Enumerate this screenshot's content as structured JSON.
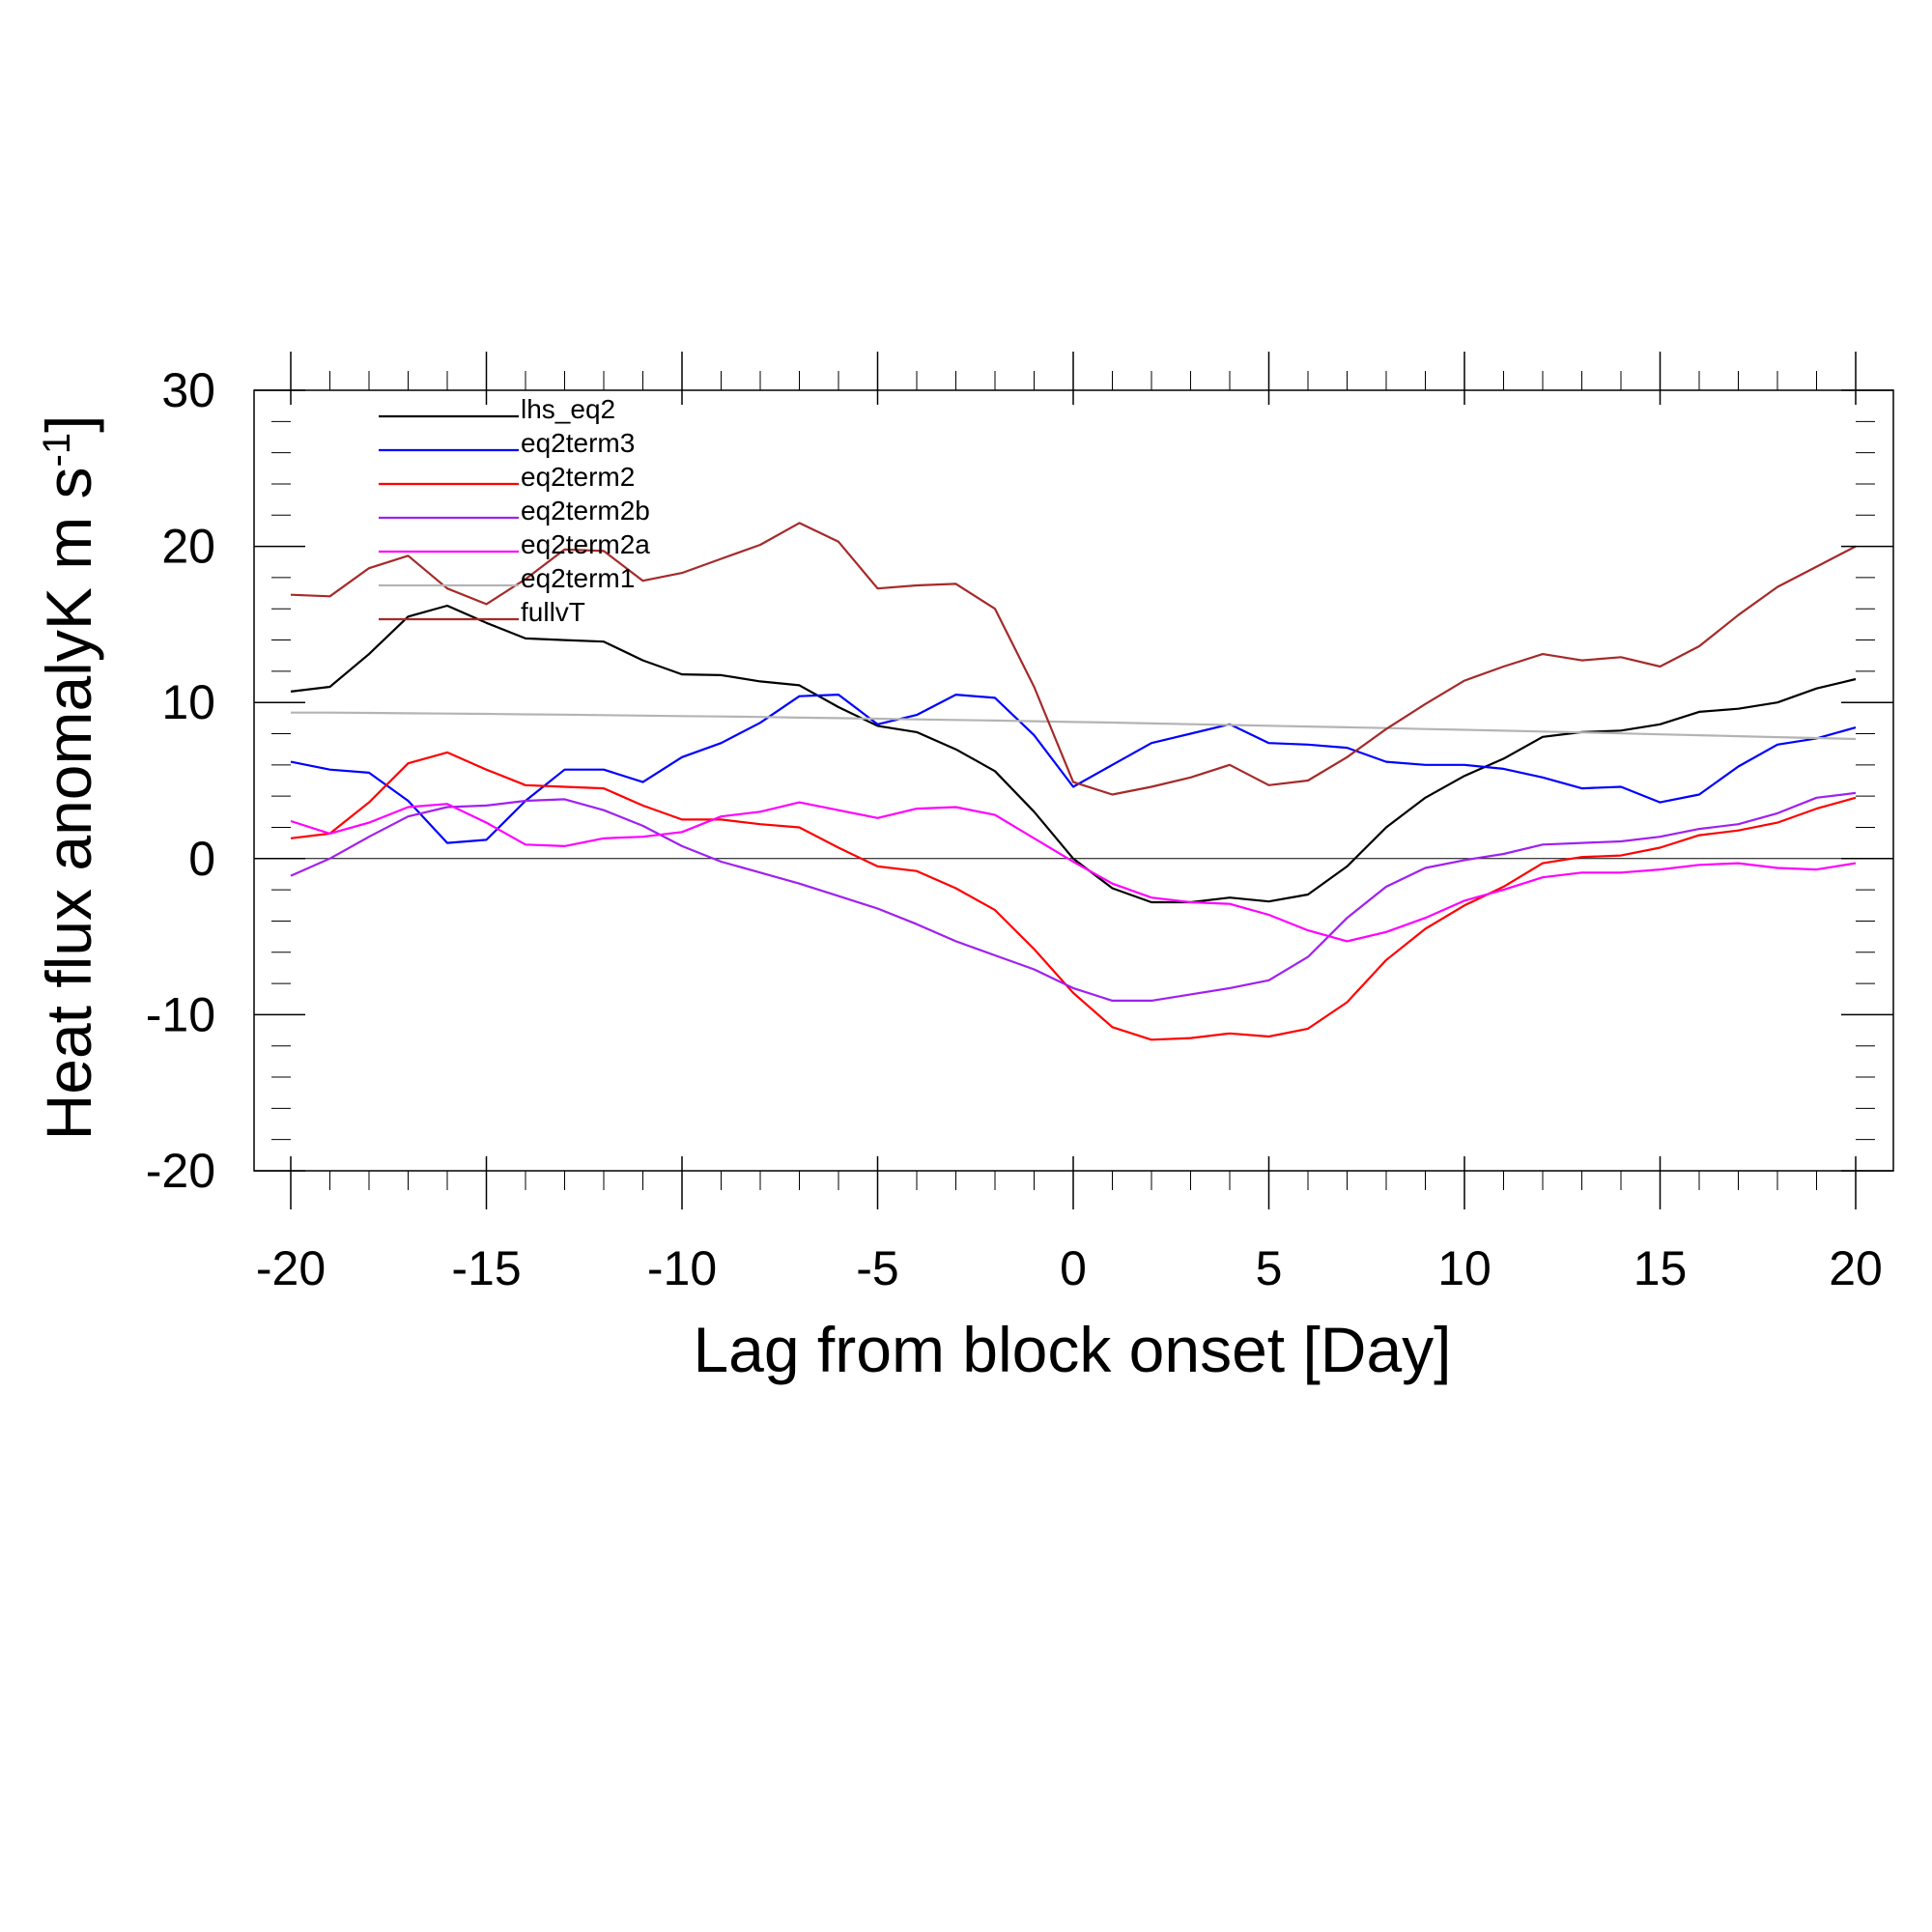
{
  "chart_data": {
    "type": "line",
    "title": "",
    "xlabel": "Lag from block onset [Day]",
    "ylabel_main": "Heat flux anomalyK m s",
    "ylabel_sup": "-1",
    "ylabel_close": "]",
    "xlim": [
      -20,
      20
    ],
    "ylim": [
      -20,
      30
    ],
    "x_ticks": [
      -20,
      -15,
      -10,
      -5,
      0,
      5,
      10,
      15,
      20
    ],
    "x_tick_labels": [
      "-20",
      "-15",
      "-10",
      "-5",
      "0",
      "5",
      "10",
      "15",
      "20"
    ],
    "y_ticks": [
      -20,
      -10,
      0,
      10,
      20,
      30
    ],
    "y_tick_labels": [
      "-20",
      "-10",
      "0",
      "10",
      "20",
      "30"
    ],
    "zero_line": true,
    "legend_position": "top-left",
    "x": [
      -20,
      -19,
      -18,
      -17,
      -16,
      -15,
      -14,
      -13,
      -12,
      -11,
      -10,
      -9,
      -8,
      -7,
      -6,
      -5,
      -4,
      -3,
      -2,
      -1,
      0,
      1,
      2,
      3,
      4,
      5,
      6,
      7,
      8,
      9,
      10,
      11,
      12,
      13,
      14,
      15,
      16,
      17,
      18,
      19,
      20
    ],
    "series": [
      {
        "name": "lhs_eq2",
        "color": "#000000",
        "values": [
          10.7,
          11.0,
          13.1,
          15.5,
          16.2,
          15.1,
          14.1,
          14.0,
          13.9,
          12.7,
          11.8,
          11.75,
          11.35,
          11.1,
          9.7,
          8.5,
          8.1,
          7.0,
          5.6,
          3.0,
          0.0,
          -1.9,
          -2.8,
          -2.8,
          -2.5,
          -2.75,
          -2.3,
          -0.5,
          2.0,
          3.9,
          5.3,
          6.4,
          7.8,
          8.1,
          8.2,
          8.6,
          9.4,
          9.6,
          10.0,
          10.9,
          11.5
        ]
      },
      {
        "name": "eq2term3",
        "color": "#0000ff",
        "values": [
          6.2,
          5.7,
          5.5,
          3.7,
          1.0,
          1.2,
          3.7,
          5.7,
          5.7,
          4.9,
          6.5,
          7.4,
          8.7,
          10.4,
          10.5,
          8.6,
          9.2,
          10.5,
          10.3,
          7.9,
          4.6,
          6.0,
          7.4,
          8.0,
          8.6,
          7.4,
          7.3,
          7.1,
          6.2,
          6.0,
          6.0,
          5.75,
          5.2,
          4.5,
          4.6,
          3.6,
          4.1,
          5.9,
          7.3,
          7.7,
          8.4
        ]
      },
      {
        "name": "eq2term2",
        "color": "#ff0000",
        "values": [
          1.3,
          1.6,
          3.6,
          6.1,
          6.8,
          5.7,
          4.7,
          4.6,
          4.5,
          3.4,
          2.5,
          2.5,
          2.2,
          2.0,
          0.7,
          -0.5,
          -0.8,
          -1.9,
          -3.3,
          -5.8,
          -8.6,
          -10.8,
          -11.6,
          -11.5,
          -11.2,
          -11.4,
          -10.9,
          -9.2,
          -6.5,
          -4.5,
          -3.0,
          -1.8,
          -0.3,
          0.1,
          0.2,
          0.7,
          1.5,
          1.8,
          2.3,
          3.2,
          3.9
        ]
      },
      {
        "name": "eq2term2b",
        "color": "#a020f0",
        "values": [
          -1.1,
          0.0,
          1.4,
          2.7,
          3.3,
          3.4,
          3.7,
          3.8,
          3.1,
          2.1,
          0.8,
          -0.2,
          -0.9,
          -1.6,
          -2.4,
          -3.2,
          -4.2,
          -5.3,
          -6.2,
          -7.1,
          -8.3,
          -9.1,
          -9.1,
          -8.7,
          -8.3,
          -7.8,
          -6.3,
          -3.8,
          -1.8,
          -0.6,
          -0.1,
          0.3,
          0.9,
          1.0,
          1.1,
          1.4,
          1.9,
          2.2,
          2.9,
          3.9,
          4.2
        ]
      },
      {
        "name": "eq2term2a",
        "color": "#ff00ff",
        "values": [
          2.4,
          1.6,
          2.3,
          3.3,
          3.5,
          2.3,
          0.9,
          0.8,
          1.3,
          1.4,
          1.7,
          2.7,
          3.0,
          3.6,
          3.1,
          2.6,
          3.2,
          3.3,
          2.8,
          1.3,
          -0.2,
          -1.6,
          -2.5,
          -2.8,
          -2.9,
          -3.6,
          -4.6,
          -5.3,
          -4.7,
          -3.8,
          -2.7,
          -2.0,
          -1.2,
          -0.9,
          -0.9,
          -0.7,
          -0.4,
          -0.3,
          -0.6,
          -0.7,
          -0.3
        ]
      },
      {
        "name": "eq2term1",
        "color": "#b4b4b4",
        "values": [
          9.35,
          9.35,
          9.33,
          9.31,
          9.29,
          9.27,
          9.24,
          9.22,
          9.19,
          9.16,
          9.13,
          9.1,
          9.07,
          9.03,
          9.0,
          8.96,
          8.92,
          8.88,
          8.84,
          8.8,
          8.75,
          8.71,
          8.66,
          8.61,
          8.56,
          8.51,
          8.46,
          8.41,
          8.36,
          8.3,
          8.25,
          8.19,
          8.14,
          8.08,
          8.02,
          7.96,
          7.9,
          7.84,
          7.78,
          7.72,
          7.66
        ]
      },
      {
        "name": "fullvT",
        "color": "#a52a2a",
        "values": [
          16.9,
          16.8,
          18.6,
          19.4,
          17.3,
          16.3,
          17.9,
          19.8,
          19.7,
          17.8,
          18.3,
          19.2,
          20.1,
          21.5,
          20.3,
          17.3,
          17.5,
          17.6,
          16.0,
          11.0,
          4.9,
          4.1,
          4.6,
          5.2,
          6.0,
          4.7,
          5.0,
          6.5,
          8.3,
          9.9,
          11.4,
          12.3,
          13.1,
          12.7,
          12.9,
          12.3,
          13.6,
          15.6,
          17.4,
          18.7,
          20.0
        ]
      }
    ]
  }
}
